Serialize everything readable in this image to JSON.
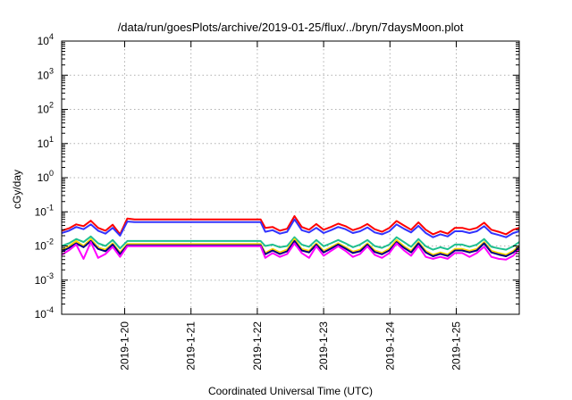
{
  "chart_data": {
    "type": "line",
    "title": "/data/run/goesPlots/archive/2019-01-25/flux/../bryn/7daysMoon.plot",
    "xlabel": "Coordinated Universal Time (UTC)",
    "ylabel": "cGy/day",
    "yscale": "log",
    "ylim": [
      0.0001,
      10000
    ],
    "xlim": [
      -0.95,
      5.95
    ],
    "grid": true,
    "y_ticks": [
      {
        "value": 0.0001,
        "base": "10",
        "exp": "-4"
      },
      {
        "value": 0.001,
        "base": "10",
        "exp": "-3"
      },
      {
        "value": 0.01,
        "base": "10",
        "exp": "-2"
      },
      {
        "value": 0.1,
        "base": "10",
        "exp": "-1"
      },
      {
        "value": 1,
        "base": "10",
        "exp": "0"
      },
      {
        "value": 10,
        "base": "10",
        "exp": "1"
      },
      {
        "value": 100,
        "base": "10",
        "exp": "2"
      },
      {
        "value": 1000,
        "base": "10",
        "exp": "3"
      },
      {
        "value": 10000,
        "base": "10",
        "exp": "4"
      }
    ],
    "x_ticks": [
      {
        "value": 0,
        "label": "2019-1-20"
      },
      {
        "value": 1,
        "label": "2019-1-21"
      },
      {
        "value": 2,
        "label": "2019-1-22"
      },
      {
        "value": 3,
        "label": "2019-1-23"
      },
      {
        "value": 4,
        "label": "2019-1-24"
      },
      {
        "value": 5,
        "label": "2019-1-25"
      }
    ],
    "x": [
      -0.95,
      -0.84,
      -0.73,
      -0.62,
      -0.51,
      -0.4,
      -0.29,
      -0.18,
      -0.07,
      0.04,
      0.15,
      2.05,
      2.12,
      2.23,
      2.34,
      2.45,
      2.56,
      2.67,
      2.78,
      2.89,
      3.0,
      3.11,
      3.22,
      3.33,
      3.44,
      3.55,
      3.66,
      3.77,
      3.88,
      3.99,
      4.1,
      4.21,
      4.32,
      4.43,
      4.54,
      4.65,
      4.76,
      4.87,
      4.98,
      5.09,
      5.2,
      5.31,
      5.42,
      5.53,
      5.64,
      5.75,
      5.86,
      5.95
    ],
    "series": [
      {
        "color": "#ff0000",
        "values": [
          0.028,
          0.033,
          0.043,
          0.038,
          0.055,
          0.034,
          0.028,
          0.042,
          0.022,
          0.064,
          0.06,
          0.06,
          0.034,
          0.036,
          0.028,
          0.032,
          0.075,
          0.036,
          0.03,
          0.044,
          0.03,
          0.036,
          0.045,
          0.038,
          0.029,
          0.034,
          0.044,
          0.031,
          0.026,
          0.034,
          0.054,
          0.04,
          0.03,
          0.049,
          0.03,
          0.022,
          0.027,
          0.023,
          0.034,
          0.034,
          0.03,
          0.034,
          0.048,
          0.03,
          0.026,
          0.022,
          0.03,
          0.034
        ]
      },
      {
        "color": "#3333ff",
        "values": [
          0.024,
          0.028,
          0.036,
          0.031,
          0.043,
          0.028,
          0.023,
          0.034,
          0.02,
          0.052,
          0.05,
          0.05,
          0.026,
          0.029,
          0.023,
          0.026,
          0.06,
          0.029,
          0.025,
          0.034,
          0.024,
          0.029,
          0.036,
          0.031,
          0.024,
          0.027,
          0.035,
          0.025,
          0.022,
          0.027,
          0.043,
          0.032,
          0.025,
          0.039,
          0.024,
          0.018,
          0.022,
          0.019,
          0.027,
          0.027,
          0.024,
          0.027,
          0.038,
          0.024,
          0.021,
          0.018,
          0.024,
          0.027
        ]
      },
      {
        "color": "#1fbf8f",
        "values": [
          0.01,
          0.012,
          0.016,
          0.013,
          0.019,
          0.012,
          0.01,
          0.015,
          0.0085,
          0.014,
          0.014,
          0.014,
          0.01,
          0.011,
          0.0092,
          0.01,
          0.018,
          0.011,
          0.0095,
          0.015,
          0.0098,
          0.012,
          0.015,
          0.012,
          0.0092,
          0.011,
          0.015,
          0.01,
          0.0088,
          0.011,
          0.018,
          0.013,
          0.0095,
          0.016,
          0.0098,
          0.0078,
          0.0092,
          0.008,
          0.011,
          0.011,
          0.0095,
          0.011,
          0.016,
          0.0095,
          0.0085,
          0.0078,
          0.0098,
          0.013
        ]
      },
      {
        "color": "#ffd700",
        "values": [
          0.0075,
          0.0098,
          0.014,
          0.01,
          0.016,
          0.009,
          0.0078,
          0.012,
          0.0065,
          0.0115,
          0.0115,
          0.0115,
          0.0062,
          0.0082,
          0.0065,
          0.0078,
          0.016,
          0.0082,
          0.0072,
          0.012,
          0.0072,
          0.0092,
          0.012,
          0.0092,
          0.0068,
          0.0078,
          0.012,
          0.0074,
          0.0063,
          0.0082,
          0.015,
          0.0098,
          0.0072,
          0.013,
          0.0072,
          0.0055,
          0.0065,
          0.0056,
          0.0082,
          0.0082,
          0.0072,
          0.0082,
          0.013,
          0.0072,
          0.0062,
          0.0055,
          0.0072,
          0.01
        ]
      },
      {
        "color": "#000080",
        "values": [
          0.0068,
          0.0088,
          0.012,
          0.0092,
          0.014,
          0.0082,
          0.007,
          0.011,
          0.0058,
          0.0105,
          0.0105,
          0.0105,
          0.0057,
          0.0074,
          0.0058,
          0.007,
          0.014,
          0.0074,
          0.0065,
          0.011,
          0.0065,
          0.0084,
          0.011,
          0.0084,
          0.0062,
          0.007,
          0.011,
          0.0067,
          0.0057,
          0.0074,
          0.013,
          0.0089,
          0.0065,
          0.012,
          0.0065,
          0.005,
          0.0059,
          0.0051,
          0.0074,
          0.0074,
          0.0065,
          0.0074,
          0.012,
          0.0065,
          0.0056,
          0.005,
          0.0065,
          0.0092
        ]
      },
      {
        "color": "#ff00ff",
        "values": [
          0.0055,
          0.0075,
          0.011,
          0.0042,
          0.013,
          0.0045,
          0.0058,
          0.0095,
          0.0048,
          0.0098,
          0.0098,
          0.0098,
          0.0045,
          0.0062,
          0.0048,
          0.0058,
          0.012,
          0.0062,
          0.0045,
          0.0098,
          0.0052,
          0.0072,
          0.0098,
          0.0072,
          0.0048,
          0.0058,
          0.0098,
          0.0055,
          0.0045,
          0.0062,
          0.012,
          0.0075,
          0.0052,
          0.01,
          0.0048,
          0.0042,
          0.0048,
          0.0042,
          0.0062,
          0.0062,
          0.0048,
          0.0062,
          0.0095,
          0.0048,
          0.0042,
          0.004,
          0.0052,
          0.0082
        ]
      }
    ]
  }
}
